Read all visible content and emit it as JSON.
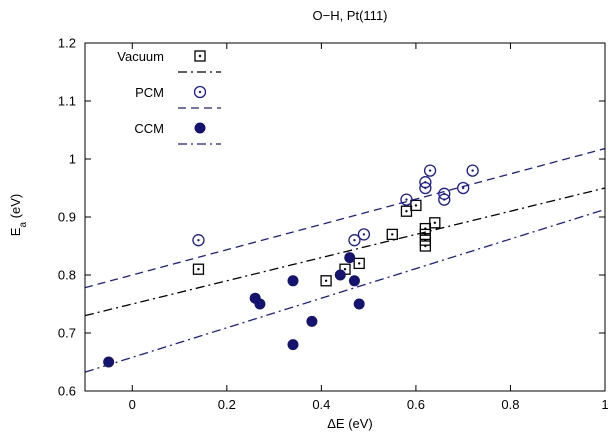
{
  "chart_data": {
    "type": "scatter",
    "title": "O−H, Pt(111)",
    "xlabel": "ΔE (eV)",
    "ylabel": {
      "main": "E",
      "sub": "a",
      "rest": " (eV)"
    },
    "xlim": [
      -0.1,
      1.0
    ],
    "ylim": [
      0.6,
      1.2
    ],
    "xticks": [
      0,
      0.2,
      0.4,
      0.6,
      0.8,
      1
    ],
    "xtick_labels": [
      "0",
      "0.2",
      "0.4",
      "0.6",
      "0.8",
      "1"
    ],
    "yticks": [
      0.6,
      0.7,
      0.8,
      0.9,
      1.0,
      1.1,
      1.2
    ],
    "ytick_labels": [
      "0.6",
      "0.7",
      "0.8",
      "0.9",
      "1",
      "1.1",
      "1.2"
    ],
    "grid": false,
    "legend_position": "top-left",
    "series": [
      {
        "name": "Vacuum",
        "marker": "boxed-dot",
        "color": "#000000",
        "points": [
          [
            0.14,
            0.81
          ],
          [
            0.41,
            0.79
          ],
          [
            0.45,
            0.81
          ],
          [
            0.48,
            0.82
          ],
          [
            0.55,
            0.87
          ],
          [
            0.58,
            0.91
          ],
          [
            0.6,
            0.92
          ],
          [
            0.62,
            0.88
          ],
          [
            0.62,
            0.87
          ],
          [
            0.62,
            0.86
          ],
          [
            0.62,
            0.85
          ],
          [
            0.64,
            0.89
          ]
        ],
        "fit": {
          "slope": 0.2,
          "intercept": 0.75,
          "style": "dash-dot",
          "color": "#000000"
        }
      },
      {
        "name": "PCM",
        "marker": "open-circle-dot",
        "color": "#1c1c9c",
        "points": [
          [
            0.14,
            0.86
          ],
          [
            0.47,
            0.86
          ],
          [
            0.49,
            0.87
          ],
          [
            0.58,
            0.93
          ],
          [
            0.62,
            0.95
          ],
          [
            0.62,
            0.96
          ],
          [
            0.63,
            0.98
          ],
          [
            0.66,
            0.93
          ],
          [
            0.66,
            0.94
          ],
          [
            0.7,
            0.95
          ],
          [
            0.72,
            0.98
          ]
        ],
        "fit": {
          "slope": 0.218,
          "intercept": 0.8,
          "style": "dashed",
          "color": "#1c1c9c"
        }
      },
      {
        "name": "CCM",
        "marker": "filled-circle",
        "color": "#141470",
        "points": [
          [
            -0.05,
            0.65
          ],
          [
            0.26,
            0.76
          ],
          [
            0.27,
            0.75
          ],
          [
            0.34,
            0.79
          ],
          [
            0.34,
            0.68
          ],
          [
            0.38,
            0.72
          ],
          [
            0.44,
            0.8
          ],
          [
            0.46,
            0.83
          ],
          [
            0.47,
            0.79
          ],
          [
            0.48,
            0.75
          ]
        ],
        "fit": {
          "slope": 0.255,
          "intercept": 0.658,
          "style": "dash-dot",
          "color": "#1c1c9c"
        }
      }
    ]
  }
}
